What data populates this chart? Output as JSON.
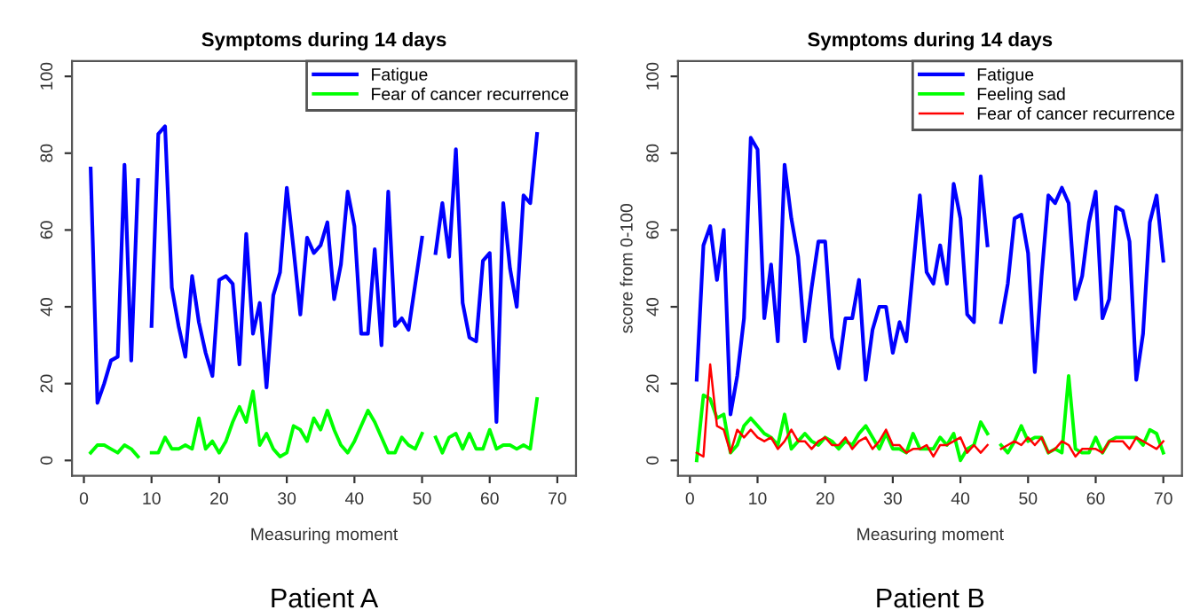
{
  "chart_data": [
    {
      "type": "line",
      "title": "Symptoms during 14 days",
      "xlabel": "Measuring moment",
      "annotations": [
        "Patient A"
      ],
      "x": [
        1,
        2,
        3,
        4,
        5,
        6,
        7,
        8,
        9,
        10,
        11,
        12,
        13,
        14,
        15,
        16,
        17,
        18,
        19,
        20,
        21,
        22,
        23,
        24,
        25,
        26,
        27,
        28,
        29,
        30,
        31,
        32,
        33,
        34,
        35,
        36,
        37,
        38,
        39,
        40,
        41,
        42,
        43,
        44,
        45,
        46,
        47,
        48,
        49,
        50,
        51,
        52,
        53,
        54,
        55,
        56,
        57,
        58,
        59,
        60,
        61,
        62,
        63,
        64,
        65,
        66,
        67
      ],
      "series": [
        {
          "name": "Fatigue",
          "color": "#0000ff",
          "values": [
            76,
            15,
            20,
            26,
            27,
            77,
            26,
            73,
            null,
            35,
            85,
            87,
            45,
            35,
            27,
            48,
            36,
            28,
            22,
            47,
            48,
            46,
            25,
            59,
            33,
            41,
            19,
            43,
            49,
            71,
            55,
            38,
            58,
            54,
            56,
            62,
            42,
            51,
            70,
            61,
            33,
            33,
            55,
            30,
            70,
            35,
            37,
            34,
            46,
            58,
            null,
            54,
            67,
            53,
            81,
            41,
            32,
            31,
            52,
            54,
            10,
            67,
            50,
            40,
            69,
            67,
            85
          ]
        },
        {
          "name": "Fear of cancer recurrence",
          "color": "#00ff00",
          "values": [
            2,
            4,
            4,
            3,
            2,
            4,
            3,
            1,
            null,
            2,
            2,
            6,
            3,
            3,
            4,
            3,
            11,
            3,
            5,
            2,
            5,
            10,
            14,
            10,
            18,
            4,
            7,
            3,
            1,
            2,
            9,
            8,
            5,
            11,
            8,
            13,
            8,
            4,
            2,
            5,
            9,
            13,
            10,
            6,
            2,
            2,
            6,
            4,
            3,
            7,
            null,
            6,
            2,
            6,
            7,
            3,
            7,
            3,
            3,
            8,
            3,
            4,
            4,
            3,
            4,
            3,
            16
          ]
        }
      ],
      "xlim": [
        -1.76,
        72.76
      ],
      "ylim": [
        -4,
        104
      ],
      "xticks": [
        0,
        10,
        20,
        30,
        40,
        50,
        60,
        70
      ],
      "yticks": [
        0,
        20,
        40,
        60,
        80,
        100
      ],
      "grid": false,
      "legend": "top right"
    },
    {
      "type": "line",
      "title": "Symptoms during 14 days",
      "xlabel": "Measuring moment",
      "ylabel": "score from 0-100",
      "annotations": [
        "Patient B"
      ],
      "x": [
        1,
        2,
        3,
        4,
        5,
        6,
        7,
        8,
        9,
        10,
        11,
        12,
        13,
        14,
        15,
        16,
        17,
        18,
        19,
        20,
        21,
        22,
        23,
        24,
        25,
        26,
        27,
        28,
        29,
        30,
        31,
        32,
        33,
        34,
        35,
        36,
        37,
        38,
        39,
        40,
        41,
        42,
        43,
        44,
        45,
        46,
        47,
        48,
        49,
        50,
        51,
        52,
        53,
        54,
        55,
        56,
        57,
        58,
        59,
        60,
        61,
        62,
        63,
        64,
        65,
        66,
        67,
        68,
        69,
        70
      ],
      "series": [
        {
          "name": "Fatigue",
          "color": "#0000ff",
          "values": [
            21,
            56,
            61,
            47,
            60,
            12,
            22,
            37,
            84,
            81,
            37,
            51,
            31,
            77,
            63,
            53,
            31,
            45,
            57,
            57,
            32,
            24,
            37,
            37,
            47,
            21,
            34,
            40,
            40,
            28,
            36,
            31,
            50,
            69,
            49,
            46,
            56,
            46,
            72,
            63,
            38,
            36,
            74,
            56,
            null,
            36,
            46,
            63,
            64,
            54,
            23,
            48,
            69,
            67,
            71,
            67,
            42,
            48,
            62,
            70,
            37,
            42,
            66,
            65,
            57,
            21,
            33,
            62,
            69,
            52
          ]
        },
        {
          "name": "Feeling sad",
          "color": "#00ff00",
          "values": [
            0,
            17,
            16,
            11,
            12,
            2,
            4,
            9,
            11,
            9,
            7,
            6,
            4,
            12,
            3,
            5,
            7,
            5,
            4,
            6,
            5,
            3,
            5,
            4,
            7,
            9,
            6,
            3,
            7,
            3,
            3,
            2,
            7,
            3,
            3,
            3,
            6,
            4,
            7,
            0,
            3,
            4,
            10,
            7,
            null,
            4,
            2,
            5,
            9,
            5,
            6,
            6,
            2,
            3,
            2,
            22,
            3,
            2,
            2,
            6,
            2,
            5,
            6,
            6,
            6,
            6,
            4,
            8,
            7,
            2
          ]
        },
        {
          "name": "Fear of cancer recurrence",
          "color": "#ff0000",
          "values": [
            2,
            1,
            25,
            9,
            8,
            2,
            8,
            6,
            8,
            6,
            5,
            6,
            3,
            5,
            8,
            5,
            5,
            3,
            5,
            6,
            4,
            4,
            6,
            3,
            5,
            6,
            3,
            5,
            8,
            4,
            4,
            2,
            3,
            3,
            4,
            1,
            4,
            4,
            5,
            6,
            2,
            4,
            2,
            4,
            null,
            3,
            4,
            5,
            4,
            6,
            4,
            6,
            2,
            3,
            5,
            4,
            1,
            3,
            3,
            3,
            2,
            5,
            5,
            5,
            3,
            6,
            5,
            4,
            3,
            5
          ]
        }
      ],
      "xlim": [
        -1.76,
        72.76
      ],
      "ylim": [
        -4,
        104
      ],
      "xticks": [
        0,
        10,
        20,
        30,
        40,
        50,
        60,
        70
      ],
      "yticks": [
        0,
        20,
        40,
        60,
        80,
        100
      ],
      "grid": false,
      "legend": "top right"
    }
  ]
}
